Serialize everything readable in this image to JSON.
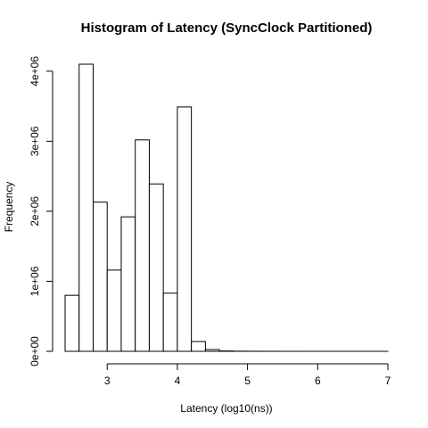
{
  "chart_data": {
    "type": "bar",
    "title": "Histogram of Latency (SyncClock Partitioned)",
    "xlabel": "Latency (log10(ns))",
    "ylabel": "Frequency",
    "xlim": [
      2.4,
      7.0
    ],
    "ylim": [
      0,
      4100000
    ],
    "bin_width": 0.2,
    "x_ticks": [
      {
        "value": 3,
        "label": "3"
      },
      {
        "value": 4,
        "label": "4"
      },
      {
        "value": 5,
        "label": "5"
      },
      {
        "value": 6,
        "label": "6"
      },
      {
        "value": 7,
        "label": "7"
      }
    ],
    "y_ticks": [
      {
        "value": 0,
        "label": "0e+00"
      },
      {
        "value": 1000000,
        "label": "1e+06"
      },
      {
        "value": 2000000,
        "label": "2e+06"
      },
      {
        "value": 3000000,
        "label": "3e+06"
      },
      {
        "value": 4000000,
        "label": "4e+06"
      }
    ],
    "bins": [
      {
        "start": 2.4,
        "end": 2.6,
        "value": 800000
      },
      {
        "start": 2.6,
        "end": 2.8,
        "value": 4100000
      },
      {
        "start": 2.8,
        "end": 3.0,
        "value": 2130000
      },
      {
        "start": 3.0,
        "end": 3.2,
        "value": 1160000
      },
      {
        "start": 3.2,
        "end": 3.4,
        "value": 1920000
      },
      {
        "start": 3.4,
        "end": 3.6,
        "value": 3020000
      },
      {
        "start": 3.6,
        "end": 3.8,
        "value": 2390000
      },
      {
        "start": 3.8,
        "end": 4.0,
        "value": 830000
      },
      {
        "start": 4.0,
        "end": 4.2,
        "value": 3490000
      },
      {
        "start": 4.2,
        "end": 4.4,
        "value": 140000
      },
      {
        "start": 4.4,
        "end": 4.6,
        "value": 25000
      },
      {
        "start": 4.6,
        "end": 4.8,
        "value": 5000
      },
      {
        "start": 4.8,
        "end": 5.0,
        "value": 2000
      },
      {
        "start": 5.0,
        "end": 5.2,
        "value": 1000
      },
      {
        "start": 5.2,
        "end": 5.4,
        "value": 500
      },
      {
        "start": 5.4,
        "end": 5.6,
        "value": 300
      },
      {
        "start": 5.6,
        "end": 5.8,
        "value": 200
      },
      {
        "start": 5.8,
        "end": 6.0,
        "value": 100
      },
      {
        "start": 6.0,
        "end": 6.2,
        "value": 100
      },
      {
        "start": 6.2,
        "end": 6.4,
        "value": 50
      },
      {
        "start": 6.4,
        "end": 6.6,
        "value": 50
      },
      {
        "start": 6.6,
        "end": 6.8,
        "value": 20
      },
      {
        "start": 6.8,
        "end": 7.0,
        "value": 10
      }
    ]
  }
}
